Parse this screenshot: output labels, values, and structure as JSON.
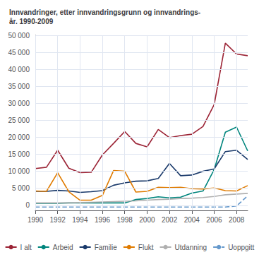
{
  "chart_data": {
    "type": "line",
    "title": "Innvandringer, etter innvandringsgrunn og innvandrings-\når. 1990-2009",
    "x": [
      1990,
      1991,
      1992,
      1993,
      1994,
      1995,
      1996,
      1997,
      1998,
      1999,
      2000,
      2001,
      2002,
      2003,
      2004,
      2005,
      2006,
      2007,
      2008,
      2009
    ],
    "series": [
      {
        "name": "I alt",
        "color": "#9b2335",
        "line_style": "solid",
        "values": [
          10800,
          11200,
          16200,
          10900,
          9600,
          9700,
          14800,
          18200,
          21700,
          18200,
          17200,
          22300,
          19900,
          20500,
          20900,
          23200,
          29600,
          47700,
          44500,
          44000
        ]
      },
      {
        "name": "Arbeid",
        "color": "#00857d",
        "line_style": "solid",
        "values": [
          600,
          600,
          600,
          700,
          700,
          700,
          700,
          700,
          700,
          1700,
          2000,
          2500,
          2200,
          2400,
          3600,
          4200,
          10500,
          21500,
          23000,
          16000
        ]
      },
      {
        "name": "Familie",
        "color": "#1a3a6b",
        "line_style": "solid",
        "values": [
          4100,
          4100,
          4400,
          4200,
          3800,
          4000,
          4300,
          5900,
          6600,
          7100,
          7200,
          7900,
          12300,
          8700,
          8900,
          10000,
          10700,
          15800,
          16200,
          13500
        ]
      },
      {
        "name": "Flukt",
        "color": "#e07b00",
        "line_style": "solid",
        "values": [
          4200,
          4100,
          9600,
          4000,
          1500,
          1500,
          2900,
          10200,
          10000,
          3900,
          4100,
          5300,
          5200,
          5300,
          4900,
          4800,
          5100,
          4300,
          4200,
          5800
        ]
      },
      {
        "name": "Utdanning",
        "color": "#b0b0b0",
        "line_style": "solid",
        "values": [
          700,
          700,
          700,
          700,
          800,
          900,
          1000,
          1100,
          1200,
          1300,
          1500,
          1700,
          1800,
          2000,
          2100,
          2300,
          2600,
          3100,
          3300,
          3500
        ]
      },
      {
        "name": "Uoppgitt",
        "color": "#6699cc",
        "line_style": "dashed",
        "values": [
          -500,
          -500,
          -500,
          -500,
          -500,
          -500,
          -500,
          -500,
          -500,
          -500,
          -500,
          -500,
          -500,
          -500,
          -500,
          -500,
          -500,
          -500,
          -200,
          2800
        ]
      }
    ],
    "xlim": [
      1990,
      2009
    ],
    "xticks": [
      1990,
      1992,
      1994,
      1996,
      1998,
      2000,
      2002,
      2004,
      2006,
      2008
    ],
    "ylim": [
      -1500,
      50000
    ],
    "yticks": [
      0,
      {
        "value": 5000,
        "label": "5 000"
      },
      {
        "value": 10000,
        "label": "10 000"
      },
      {
        "value": 15000,
        "label": "15 000"
      },
      {
        "value": 20000,
        "label": "20 000"
      },
      {
        "value": 25000,
        "label": "25 000"
      },
      {
        "value": 30000,
        "label": "30 000"
      },
      {
        "value": 35000,
        "label": "35 000"
      },
      {
        "value": 40000,
        "label": "40 000"
      },
      {
        "value": 45000,
        "label": "45 000"
      },
      {
        "value": 50000,
        "label": "50 000"
      }
    ],
    "grid": true,
    "legend": "bottom"
  }
}
